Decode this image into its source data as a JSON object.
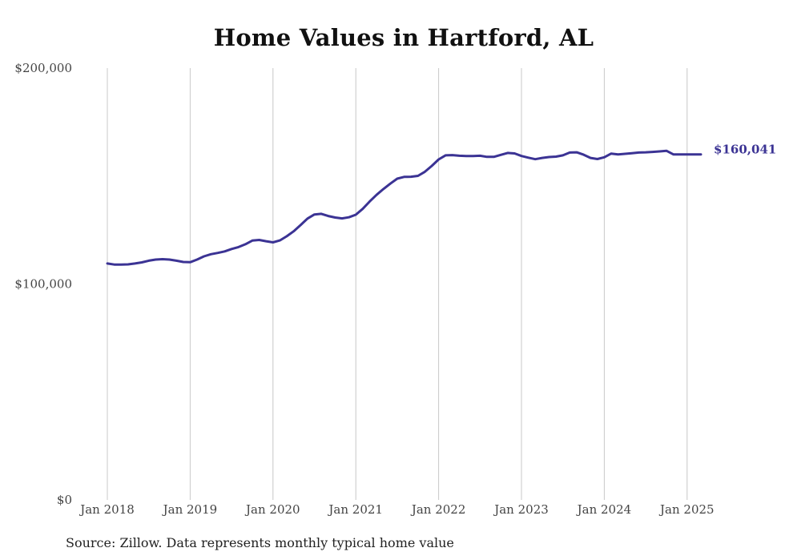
{
  "chart_data": {
    "type": "line",
    "title": "Home Values in Hartford, AL",
    "xlabel": "",
    "ylabel": "",
    "ylim": [
      0,
      200000
    ],
    "y_ticks": [
      {
        "value": 0,
        "label": "$0"
      },
      {
        "value": 100000,
        "label": "$100,000"
      },
      {
        "value": 200000,
        "label": "$200,000"
      }
    ],
    "x_ticks": [
      {
        "value": 2018.0,
        "label": "Jan 2018"
      },
      {
        "value": 2019.0,
        "label": "Jan 2019"
      },
      {
        "value": 2020.0,
        "label": "Jan 2020"
      },
      {
        "value": 2021.0,
        "label": "Jan 2021"
      },
      {
        "value": 2022.0,
        "label": "Jan 2022"
      },
      {
        "value": 2023.0,
        "label": "Jan 2023"
      },
      {
        "value": 2024.0,
        "label": "Jan 2024"
      },
      {
        "value": 2025.0,
        "label": "Jan 2025"
      }
    ],
    "xlim": [
      2018.0,
      2025.17
    ],
    "grid": "vertical",
    "legend": "none",
    "line_color": "#3b3394",
    "end_label": "$160,041",
    "series": [
      {
        "x": [
          "2018-01",
          "2018-02",
          "2018-03",
          "2018-04",
          "2018-05",
          "2018-06",
          "2018-07",
          "2018-08",
          "2018-09",
          "2018-10",
          "2018-11",
          "2018-12",
          "2019-01",
          "2019-02",
          "2019-03",
          "2019-04",
          "2019-05",
          "2019-06",
          "2019-07",
          "2019-08",
          "2019-09",
          "2019-10",
          "2019-11",
          "2019-12",
          "2020-01",
          "2020-02",
          "2020-03",
          "2020-04",
          "2020-05",
          "2020-06",
          "2020-07",
          "2020-08",
          "2020-09",
          "2020-10",
          "2020-11",
          "2020-12",
          "2021-01",
          "2021-02",
          "2021-03",
          "2021-04",
          "2021-05",
          "2021-06",
          "2021-07",
          "2021-08",
          "2021-09",
          "2021-10",
          "2021-11",
          "2021-12",
          "2022-01",
          "2022-02",
          "2022-03",
          "2022-04",
          "2022-05",
          "2022-06",
          "2022-07",
          "2022-08",
          "2022-09",
          "2022-10",
          "2022-11",
          "2022-12",
          "2023-01",
          "2023-02",
          "2023-03",
          "2023-04",
          "2023-05",
          "2023-06",
          "2023-07",
          "2023-08",
          "2023-09",
          "2023-10",
          "2023-11",
          "2023-12",
          "2024-01",
          "2024-02",
          "2024-03",
          "2024-04",
          "2024-05",
          "2024-06",
          "2024-07",
          "2024-08",
          "2024-09",
          "2024-10",
          "2024-11",
          "2024-12",
          "2025-01",
          "2025-02",
          "2025-03"
        ],
        "values": [
          109500,
          109000,
          109000,
          109100,
          109500,
          110000,
          110800,
          111300,
          111500,
          111300,
          110800,
          110200,
          110100,
          111300,
          112800,
          113800,
          114400,
          115100,
          116200,
          117100,
          118400,
          120100,
          120400,
          119800,
          119300,
          120200,
          122100,
          124400,
          127300,
          130300,
          132200,
          132500,
          131500,
          130800,
          130400,
          130900,
          132100,
          134800,
          138200,
          141300,
          144000,
          146500,
          148800,
          149600,
          149700,
          150100,
          152000,
          154700,
          157700,
          159600,
          159700,
          159400,
          159300,
          159300,
          159400,
          158900,
          158900,
          159800,
          160700,
          160500,
          159300,
          158500,
          157800,
          158400,
          158800,
          159000,
          159600,
          160900,
          161000,
          159900,
          158400,
          157900,
          158700,
          160400,
          160000,
          160300,
          160600,
          160900,
          161000,
          161200,
          161400,
          161700,
          160041,
          160041,
          160041,
          160041,
          160041
        ]
      }
    ]
  },
  "source_note": "Source: Zillow. Data represents monthly typical home value"
}
